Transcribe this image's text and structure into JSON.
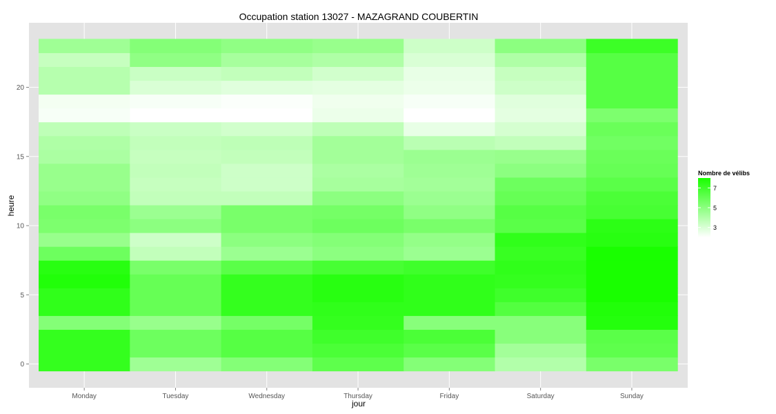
{
  "chart_data": {
    "type": "heatmap",
    "title": "Occupation station 13027 - MAZAGRAND COUBERTIN",
    "xlabel": "jour",
    "ylabel": "heure",
    "x": [
      "Monday",
      "Tuesday",
      "Wednesday",
      "Thursday",
      "Friday",
      "Saturday",
      "Sunday"
    ],
    "y_ticks": [
      0,
      5,
      10,
      15,
      20
    ],
    "ylim": [
      -0.5,
      23.5
    ],
    "grid": true,
    "legend": {
      "title": "Nombre de vélibs",
      "ticks": [
        3,
        5,
        7
      ],
      "range": [
        2,
        8
      ],
      "low_color": "#ffffff",
      "high_color": "#19ff00",
      "placement": "right"
    },
    "values": {
      "Monday": [
        7.3,
        7.3,
        7.3,
        5.2,
        7.4,
        7.4,
        7.8,
        7.6,
        5.8,
        4.7,
        5.4,
        5.5,
        4.9,
        4.7,
        4.7,
        4.2,
        4.1,
        3.7,
        2.2,
        2.3,
        3.9,
        3.9,
        3.5,
        4.5
      ],
      "Tuesday": [
        4.5,
        5.8,
        5.8,
        4.7,
        6.0,
        6.0,
        6.0,
        5.5,
        3.6,
        3.3,
        5.0,
        4.6,
        3.6,
        3.5,
        3.6,
        3.5,
        3.6,
        3.4,
        2.0,
        2.2,
        3.0,
        3.4,
        4.9,
        5.2
      ],
      "Wednesday": [
        5.2,
        6.4,
        6.4,
        5.6,
        7.3,
        7.3,
        7.3,
        6.3,
        4.6,
        5.0,
        5.5,
        5.5,
        3.6,
        3.3,
        3.3,
        3.6,
        3.7,
        3.2,
        2.0,
        2.1,
        2.8,
        3.6,
        4.3,
        4.9
      ],
      "Thursday": [
        6.2,
        6.7,
        7.0,
        7.3,
        7.4,
        7.6,
        7.6,
        6.8,
        5.0,
        5.2,
        5.8,
        5.6,
        5.0,
        4.3,
        4.2,
        4.4,
        4.4,
        3.7,
        2.5,
        2.4,
        2.7,
        3.2,
        4.1,
        4.7
      ],
      "Friday": [
        5.2,
        6.3,
        6.7,
        5.1,
        7.4,
        7.4,
        7.4,
        7.0,
        4.6,
        4.8,
        5.5,
        4.9,
        4.6,
        4.4,
        4.5,
        4.6,
        3.8,
        2.6,
        1.9,
        2.2,
        2.5,
        2.6,
        3.0,
        3.3
      ],
      "Saturday": [
        4.0,
        4.4,
        5.1,
        5.1,
        6.5,
        7.0,
        7.3,
        7.4,
        7.2,
        7.4,
        6.3,
        6.4,
        6.0,
        5.8,
        5.0,
        4.7,
        3.6,
        3.1,
        2.7,
        2.8,
        3.3,
        3.5,
        4.1,
        5.0
      ],
      "Sunday": [
        5.5,
        6.2,
        6.3,
        7.7,
        7.8,
        8.3,
        8.5,
        8.7,
        8.0,
        7.6,
        7.5,
        6.8,
        6.7,
        6.3,
        6.0,
        5.9,
        5.7,
        5.9,
        5.4,
        6.4,
        6.4,
        6.4,
        6.4,
        7.1
      ]
    }
  }
}
